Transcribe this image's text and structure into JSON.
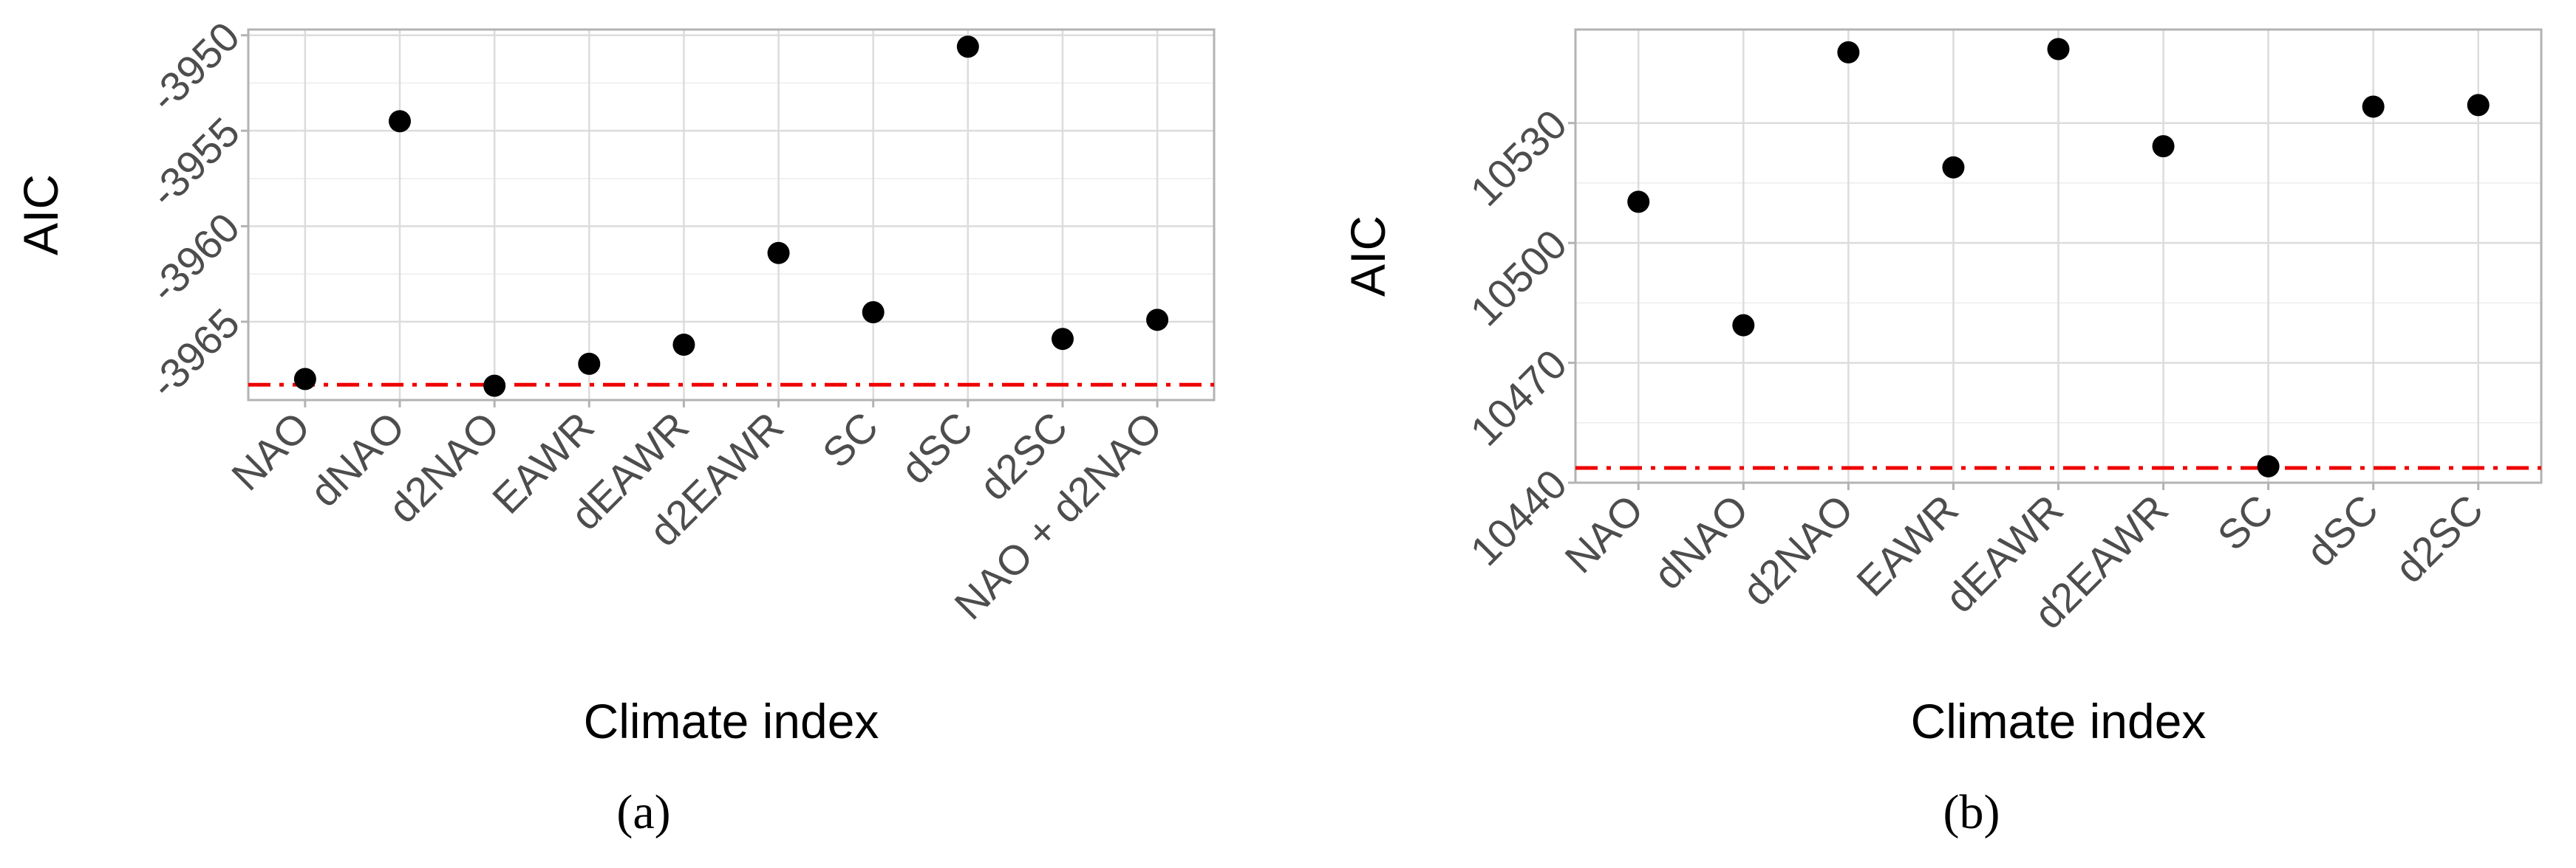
{
  "chart_data": [
    {
      "type": "scatter",
      "panel_label": "(a)",
      "xlabel": "Climate index",
      "ylabel": "AIC",
      "categories": [
        "NAO",
        "dNAO",
        "d2NAO",
        "EAWR",
        "dEAWR",
        "d2EAWR",
        "SC",
        "dSC",
        "d2SC",
        "NAO + d2NAO"
      ],
      "values": [
        -3968.0,
        -3954.5,
        -3968.35,
        -3967.2,
        -3966.2,
        -3961.4,
        -3964.5,
        -3950.6,
        -3965.9,
        -3964.9
      ],
      "color": "#000000",
      "ylim": [
        -3969.1,
        -3949.7
      ],
      "yticks": [
        -3965,
        -3960,
        -3955,
        -3950
      ],
      "ref_line": {
        "value": -3968.3,
        "color": "#ee0000"
      },
      "grid": true
    },
    {
      "type": "scatter",
      "panel_label": "(b)",
      "xlabel": "Climate index",
      "ylabel": "AIC",
      "categories": [
        "NAO",
        "dNAO",
        "d2NAO",
        "EAWR",
        "dEAWR",
        "d2EAWR",
        "SC",
        "dSC",
        "d2SC"
      ],
      "values": [
        10510.3,
        10479.4,
        10547.7,
        10518.9,
        10548.5,
        10524.2,
        10444.1,
        10534.1,
        10534.5
      ],
      "color": "#000000",
      "ylim": [
        10440,
        10553.4
      ],
      "yticks": [
        10440,
        10470,
        10500,
        10530
      ],
      "ref_line": {
        "value": 10443.7,
        "color": "#ee0000"
      },
      "grid": true
    }
  ]
}
